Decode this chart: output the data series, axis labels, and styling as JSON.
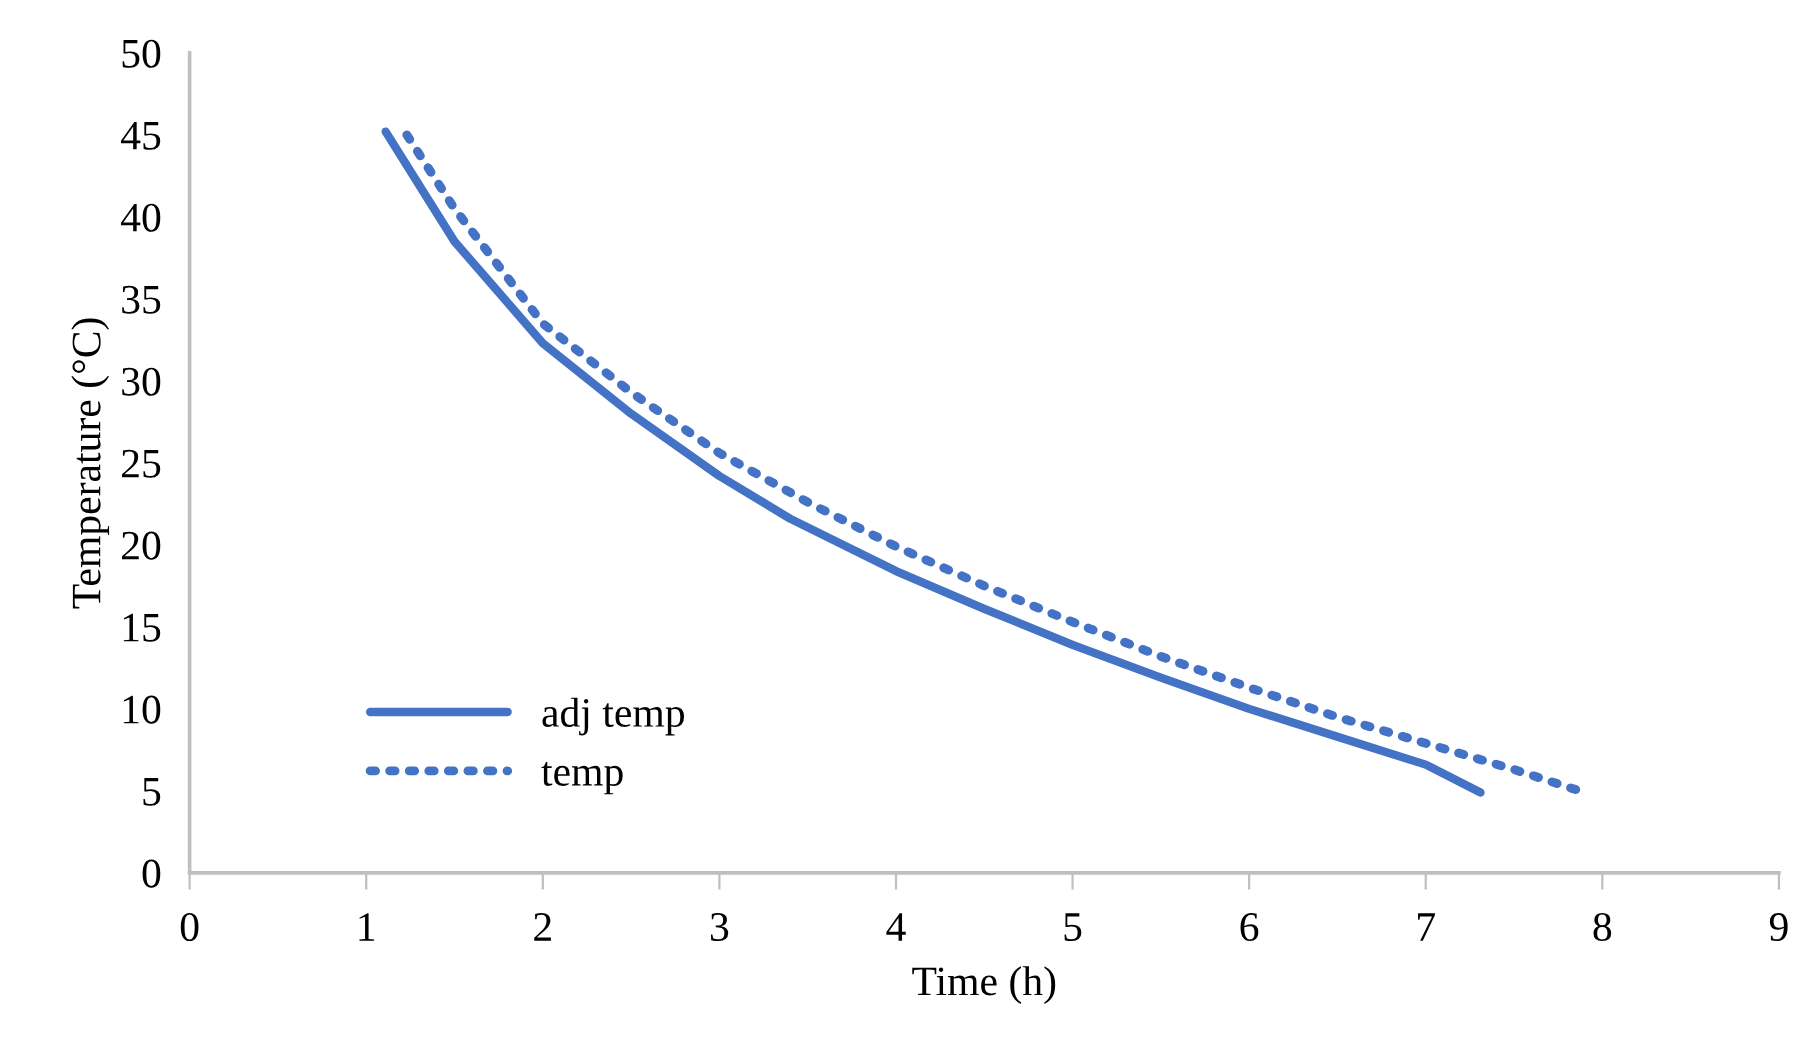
{
  "chart_data": {
    "type": "line",
    "xlabel": "Time (h)",
    "ylabel": "Temperature (°C)",
    "xlim": [
      0,
      9
    ],
    "ylim": [
      0,
      50
    ],
    "xticks": [
      0,
      1,
      2,
      3,
      4,
      5,
      6,
      7,
      8,
      9
    ],
    "yticks": [
      0,
      5,
      10,
      15,
      20,
      25,
      30,
      35,
      40,
      45,
      50
    ],
    "grid": false,
    "legend": "bottom left",
    "marker": "none",
    "series": [
      {
        "name": "adj temp",
        "color": "#4472c4",
        "line_style": "solid",
        "x": [
          1.11,
          1.5,
          2,
          2.5,
          3,
          3.4,
          4,
          4.5,
          5,
          5.5,
          6,
          6.5,
          7,
          7.31
        ],
        "values": [
          45.2,
          38.5,
          32.3,
          28,
          24.2,
          21.6,
          18.4,
          16.1,
          13.9,
          11.9,
          10,
          8.3,
          6.6,
          4.9
        ]
      },
      {
        "name": "temp",
        "color": "#4472c4",
        "line_style": "dotted",
        "x": [
          1.23,
          1.5,
          2,
          2.5,
          3,
          3.5,
          4,
          4.5,
          5,
          5.5,
          6,
          6.5,
          7,
          7.5,
          7.9
        ],
        "values": [
          45,
          40.5,
          33.5,
          29.3,
          25.6,
          22.6,
          19.9,
          17.5,
          15.3,
          13.2,
          11.3,
          9.5,
          7.9,
          6.3,
          4.9
        ]
      }
    ]
  }
}
